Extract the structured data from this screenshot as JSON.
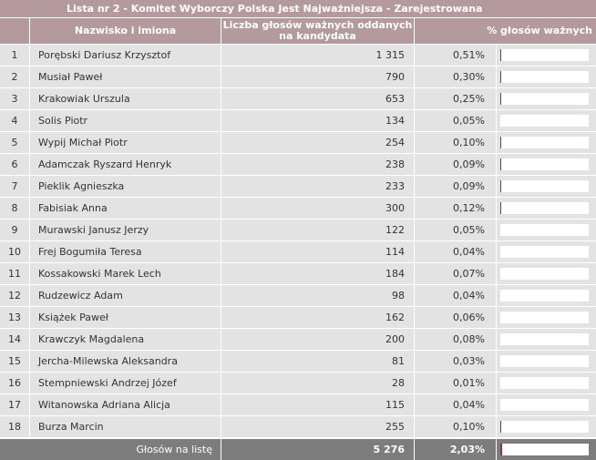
{
  "table": {
    "title": "Lista nr 2 - Komitet Wyborczy Polska Jest Najważniejsza - Zarejestrowana",
    "headers": {
      "name": "Nazwisko i imiona",
      "votes": "Liczba głosów ważnych oddanych na kandydata",
      "percent": "% głosów ważnych"
    },
    "bar_color": "#9c2e3c",
    "header_color": "#b49a9c",
    "rows": [
      {
        "no": "1",
        "name": "Porębski Dariusz Krzysztof",
        "votes": "1 315",
        "percent": "0,51%",
        "share": 0.51
      },
      {
        "no": "2",
        "name": "Musiał Paweł",
        "votes": "790",
        "percent": "0,30%",
        "share": 0.3
      },
      {
        "no": "3",
        "name": "Krakowiak Urszula",
        "votes": "653",
        "percent": "0,25%",
        "share": 0.25
      },
      {
        "no": "4",
        "name": "Solis Piotr",
        "votes": "134",
        "percent": "0,05%",
        "share": 0.05
      },
      {
        "no": "5",
        "name": "Wypij Michał Piotr",
        "votes": "254",
        "percent": "0,10%",
        "share": 0.1
      },
      {
        "no": "6",
        "name": "Adamczak Ryszard Henryk",
        "votes": "238",
        "percent": "0,09%",
        "share": 0.09
      },
      {
        "no": "7",
        "name": "Pieklik Agnieszka",
        "votes": "233",
        "percent": "0,09%",
        "share": 0.09
      },
      {
        "no": "8",
        "name": "Fabisiak Anna",
        "votes": "300",
        "percent": "0,12%",
        "share": 0.12
      },
      {
        "no": "9",
        "name": "Murawski Janusz Jerzy",
        "votes": "122",
        "percent": "0,05%",
        "share": 0.05
      },
      {
        "no": "10",
        "name": "Frej Bogumiła Teresa",
        "votes": "114",
        "percent": "0,04%",
        "share": 0.04
      },
      {
        "no": "11",
        "name": "Kossakowski Marek Lech",
        "votes": "184",
        "percent": "0,07%",
        "share": 0.07
      },
      {
        "no": "12",
        "name": "Rudzewicz Adam",
        "votes": "98",
        "percent": "0,04%",
        "share": 0.04
      },
      {
        "no": "13",
        "name": "Książek Paweł",
        "votes": "162",
        "percent": "0,06%",
        "share": 0.06
      },
      {
        "no": "14",
        "name": "Krawczyk Magdalena",
        "votes": "200",
        "percent": "0,08%",
        "share": 0.08
      },
      {
        "no": "15",
        "name": "Jercha-Milewska Aleksandra",
        "votes": "81",
        "percent": "0,03%",
        "share": 0.03
      },
      {
        "no": "16",
        "name": "Stempniewski Andrzej Józef",
        "votes": "28",
        "percent": "0,01%",
        "share": 0.01
      },
      {
        "no": "17",
        "name": "Witanowska Adriana Alicja",
        "votes": "115",
        "percent": "0,04%",
        "share": 0.04
      },
      {
        "no": "18",
        "name": "Burza Marcin",
        "votes": "255",
        "percent": "0,10%",
        "share": 0.1
      }
    ],
    "footer": {
      "label": "Głosów na listę",
      "votes": "5 276",
      "percent": "2,03%",
      "share": 2.03
    }
  }
}
